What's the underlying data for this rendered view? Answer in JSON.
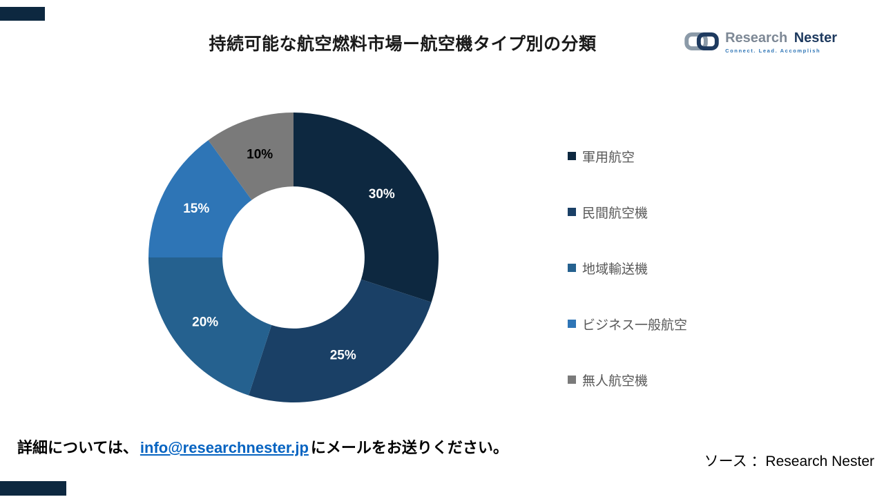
{
  "page": {
    "title": "持続可能な航空燃料市場ー航空機タイプ別の分類",
    "logo": {
      "name_part1": "Research",
      "name_part2": "Nester",
      "tagline": "Connect. Lead. Accomplish"
    },
    "footer": {
      "prefix": "詳細については、",
      "email": "info@researchnester.jp",
      "suffix": "にメールをお送りください。",
      "source": "ソース ：Research Nester"
    }
  },
  "chart_data": {
    "type": "pie",
    "subtype": "donut",
    "title": "持続可能な航空燃料市場ー航空機タイプ別の分類",
    "units": "%",
    "inner_radius_ratio": 0.49,
    "start_angle_deg": 0,
    "direction": "clockwise",
    "legend_position": "right",
    "categories": [
      "軍用航空",
      "民間航空機",
      "地域輸送機",
      "ビジネス一般航空",
      "無人航空機"
    ],
    "values": [
      30,
      25,
      20,
      15,
      10
    ],
    "labels": [
      "30%",
      "25%",
      "20%",
      "15%",
      "10%"
    ],
    "colors": [
      "#0d2840",
      "#1a4066",
      "#25618f",
      "#2e75b6",
      "#7a7a7a"
    ],
    "label_colors": [
      "#ffffff",
      "#ffffff",
      "#ffffff",
      "#ffffff",
      "#000000"
    ]
  }
}
